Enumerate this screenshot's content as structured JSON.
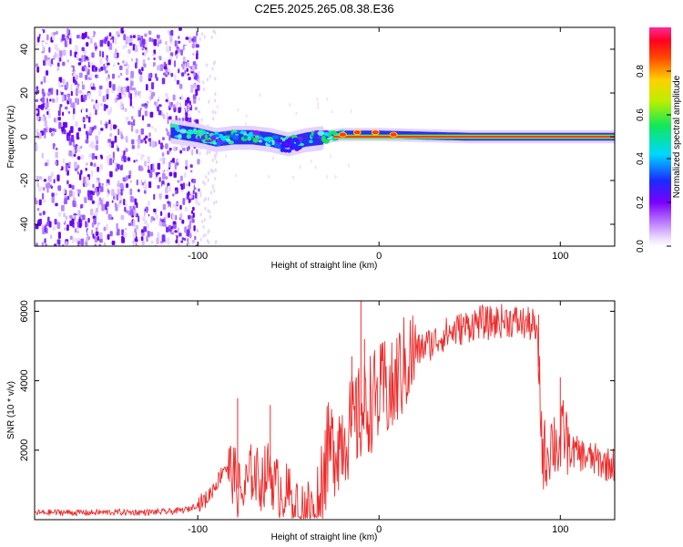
{
  "title": "C2E5.2025.265.08.38.E36",
  "chart_data": [
    {
      "type": "heatmap",
      "name": "spectrogram",
      "xlabel": "Height of straight line (km)",
      "ylabel": "Frequency (Hz)",
      "xlim": [
        -190,
        130
      ],
      "ylim": [
        -50,
        50
      ],
      "xticks": [
        -100,
        0,
        100
      ],
      "xtick_labels": [
        "-100",
        "0",
        "100"
      ],
      "yticks": [
        -40,
        -20,
        0,
        20,
        40
      ],
      "ytick_labels": [
        "-40",
        "-20",
        "0",
        "20",
        "40"
      ],
      "colorbar": {
        "label": "Normalized spectral amplitude",
        "range": [
          0,
          1
        ],
        "ticks": [
          0.0,
          0.2,
          0.4,
          0.6,
          0.8
        ],
        "tick_labels": [
          "0.0",
          "0.2",
          "0.4",
          "0.6",
          "0.8"
        ],
        "colormap": "rainbow (white-violet-blue-cyan-green-yellow-red-magenta)"
      },
      "features": {
        "noise_region_x": [
          -190,
          -100
        ],
        "sparse_noise_x": [
          -100,
          -90
        ],
        "signal_band": [
          {
            "x": -115,
            "f": 3
          },
          {
            "x": -100,
            "f": 1
          },
          {
            "x": -90,
            "f": -1
          },
          {
            "x": -80,
            "f": 0
          },
          {
            "x": -70,
            "f": 0
          },
          {
            "x": -60,
            "f": -1
          },
          {
            "x": -50,
            "f": -3
          },
          {
            "x": -40,
            "f": -1
          },
          {
            "x": -30,
            "f": 0
          },
          {
            "x": -20,
            "f": 1
          },
          {
            "x": -10,
            "f": 1
          },
          {
            "x": 0,
            "f": 1
          },
          {
            "x": 50,
            "f": 0
          },
          {
            "x": 130,
            "f": 0
          }
        ],
        "bright_line_start_x": -25
      }
    },
    {
      "type": "line",
      "name": "snr",
      "xlabel": "Height of straight line (km)",
      "ylabel": "SNR (10 * v/v)",
      "xlim": [
        -190,
        130
      ],
      "ylim": [
        0,
        6300
      ],
      "xticks": [
        -100,
        0,
        100
      ],
      "xtick_labels": [
        "-100",
        "0",
        "100"
      ],
      "yticks": [
        2000,
        4000,
        6000
      ],
      "ytick_labels": [
        "2000",
        "4000",
        "6000"
      ],
      "color": "#ee2b2b",
      "series": [
        {
          "name": "SNR",
          "x": [
            -190,
            -175,
            -160,
            -145,
            -130,
            -115,
            -105,
            -95,
            -88,
            -85,
            -80,
            -78,
            -75,
            -70,
            -65,
            -60,
            -58,
            -55,
            -50,
            -45,
            -40,
            -35,
            -33,
            -30,
            -28,
            -25,
            -22,
            -20,
            -15,
            -10,
            -8,
            -5,
            0,
            3,
            5,
            8,
            10,
            15,
            20,
            25,
            30,
            35,
            40,
            45,
            50,
            55,
            60,
            65,
            70,
            75,
            80,
            85,
            87,
            89,
            90,
            92,
            95,
            98,
            100,
            102,
            105,
            110,
            115,
            120,
            125,
            130
          ],
          "y": [
            200,
            210,
            200,
            215,
            210,
            230,
            300,
            600,
            1200,
            1600,
            1300,
            900,
            700,
            1400,
            1100,
            1500,
            1000,
            900,
            700,
            500,
            400,
            350,
            800,
            1600,
            1900,
            2100,
            2300,
            2400,
            2700,
            3000,
            3100,
            3400,
            3500,
            3800,
            3700,
            3600,
            4100,
            4500,
            4800,
            5000,
            5100,
            5300,
            5400,
            5500,
            5600,
            5700,
            5650,
            5700,
            5750,
            5700,
            5650,
            5600,
            5300,
            3500,
            2000,
            1800,
            2300,
            2200,
            2000,
            2600,
            2000,
            1900,
            1800,
            1700,
            1600,
            1600
          ]
        }
      ]
    }
  ]
}
